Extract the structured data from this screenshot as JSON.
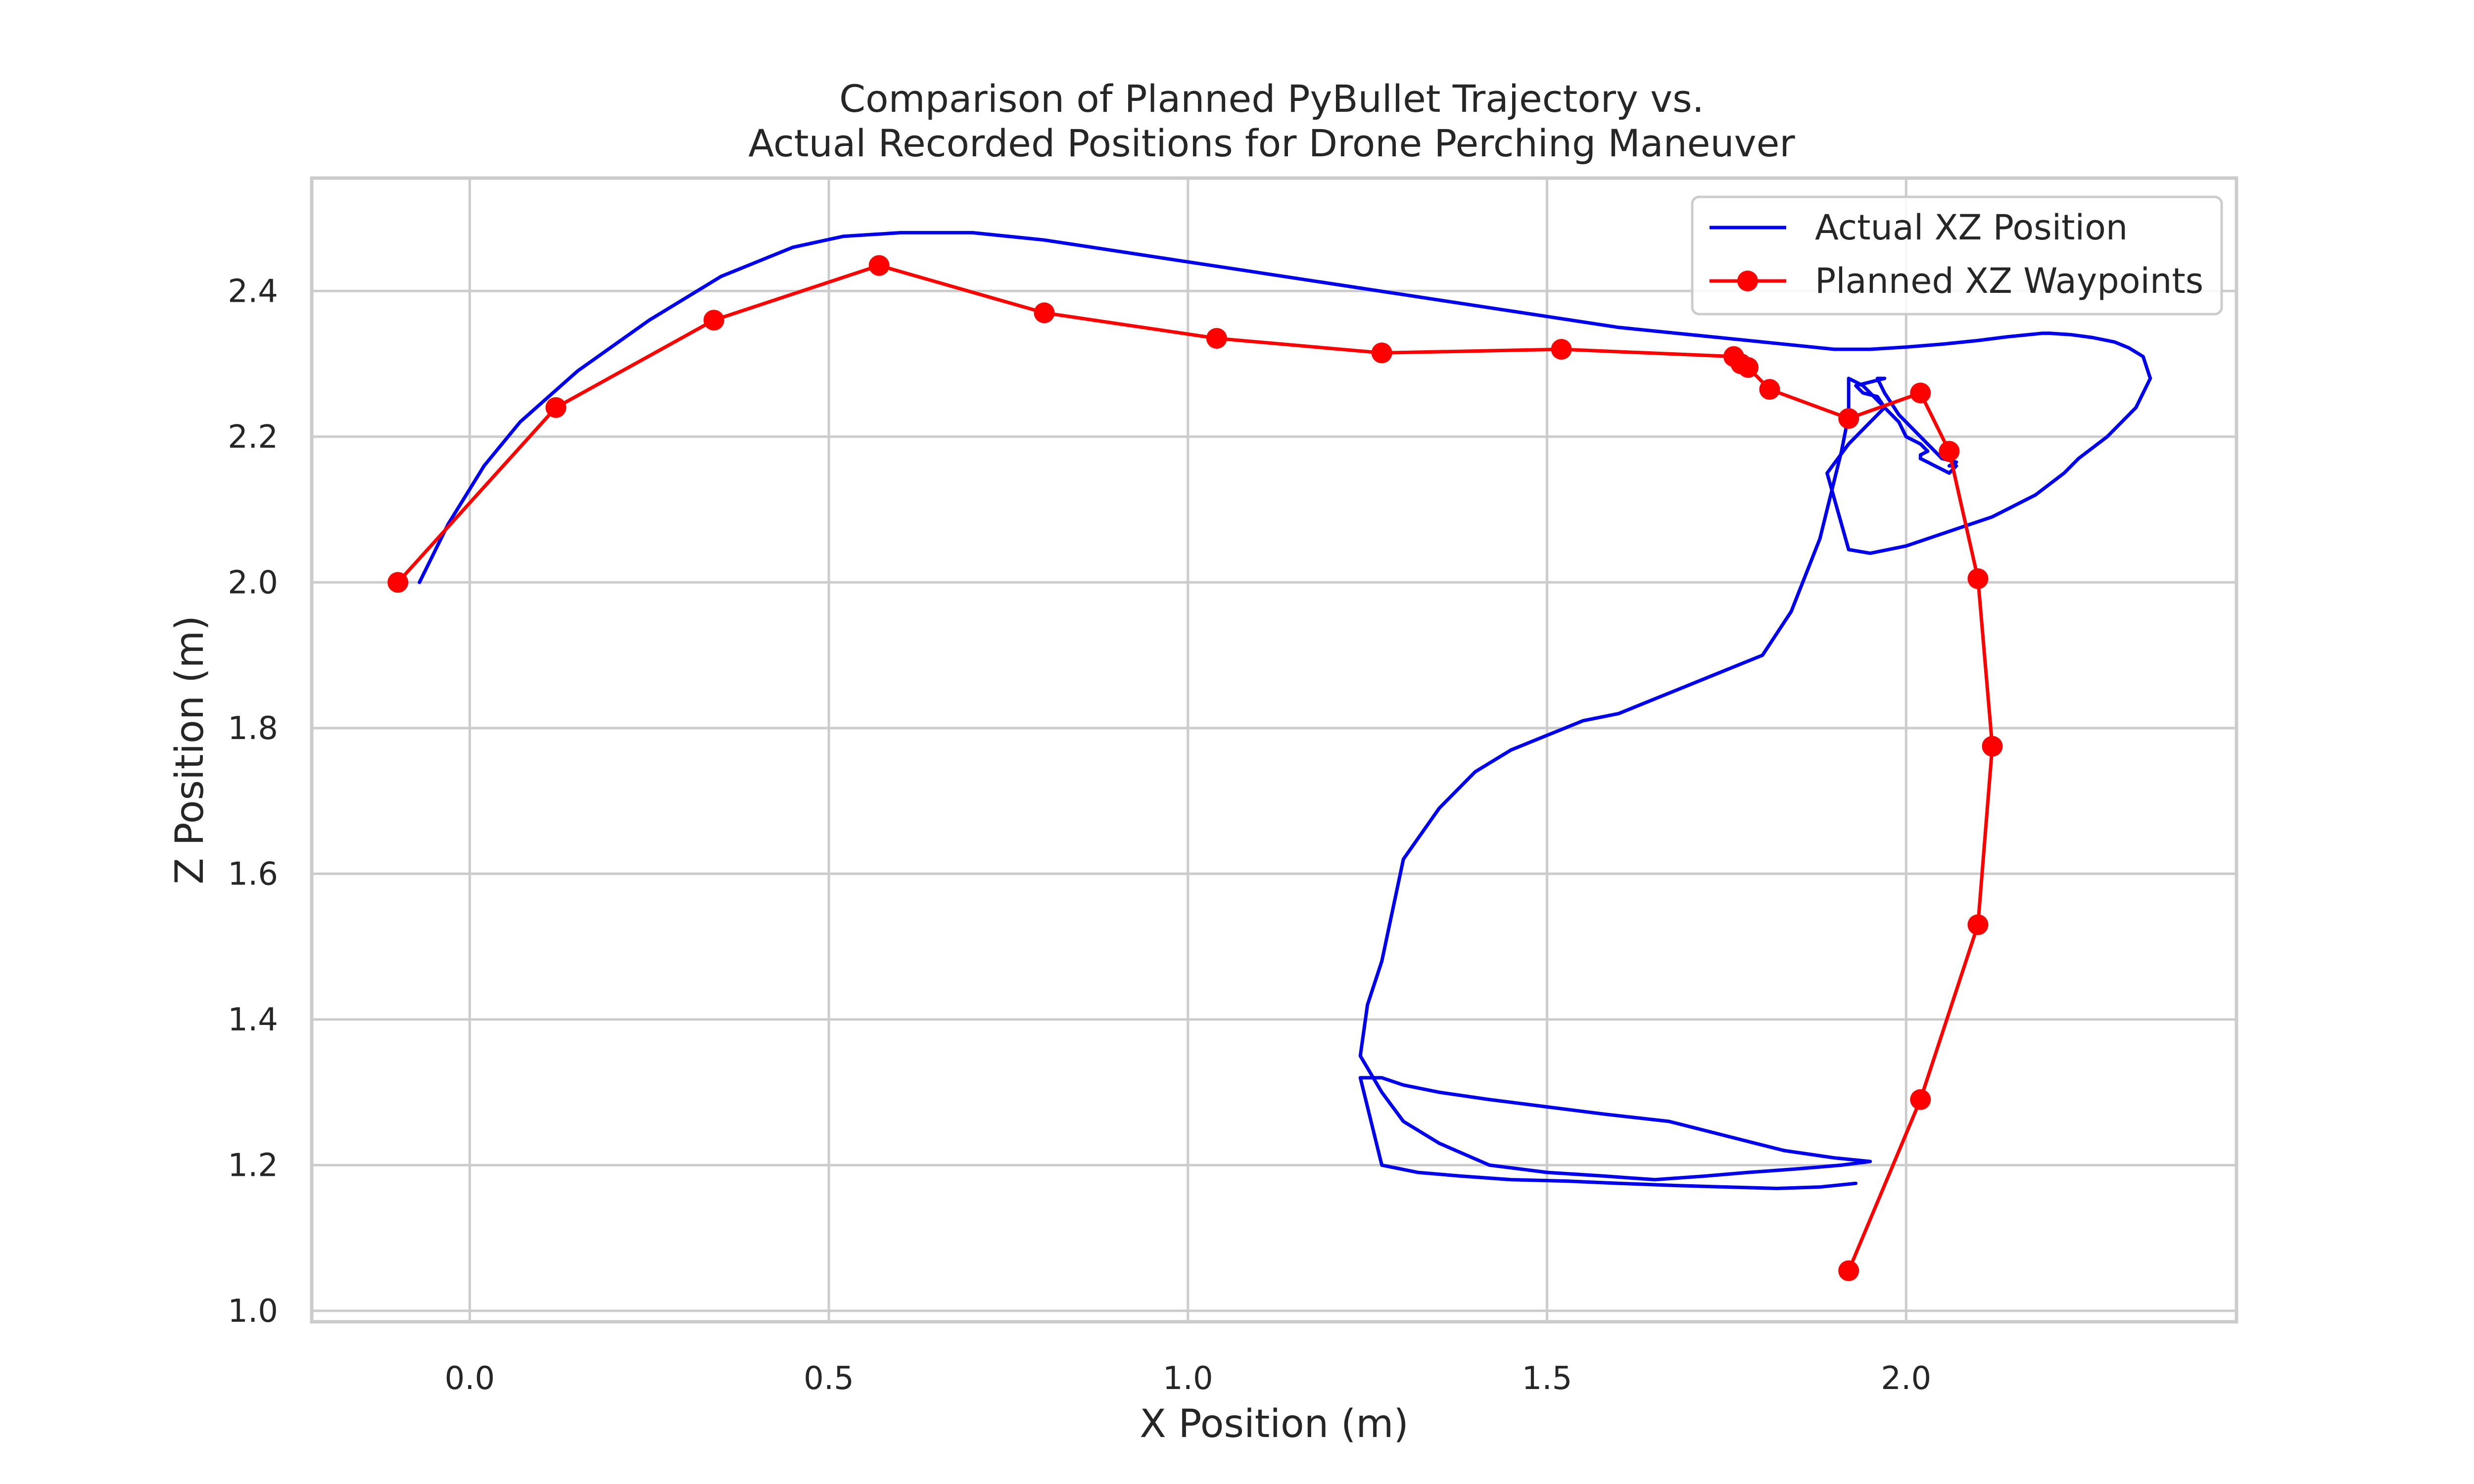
{
  "colors": {
    "actual": "#0000ee",
    "planned": "#ff0000",
    "grid": "#cccccc",
    "frame": "#cccccc",
    "background": "#ffffff"
  },
  "chart_data": {
    "type": "line",
    "title_lines": [
      "Comparison of Planned PyBullet Trajectory vs.",
      "Actual Recorded Positions for Drone Perching Maneuver"
    ],
    "xlabel": "X Position (m)",
    "ylabel": "Z Position (m)",
    "xlim": [
      -0.22,
      2.46
    ],
    "ylim": [
      0.985,
      2.555
    ],
    "xticks": [
      0.0,
      0.5,
      1.0,
      1.5,
      2.0
    ],
    "yticks": [
      1.0,
      1.2,
      1.4,
      1.6,
      1.8,
      2.0,
      2.2,
      2.4
    ],
    "xtick_labels": [
      "0.0",
      "0.5",
      "1.0",
      "1.5",
      "2.0"
    ],
    "ytick_labels": [
      "1.0",
      "1.2",
      "1.4",
      "1.6",
      "1.8",
      "2.0",
      "2.2",
      "2.4"
    ],
    "grid": true,
    "legend_position": "upper right",
    "series": [
      {
        "name": "Actual XZ Position",
        "style": "line",
        "x": [
          -0.07,
          -0.03,
          0.02,
          0.07,
          0.15,
          0.25,
          0.35,
          0.45,
          0.52,
          0.6,
          0.7,
          0.8,
          0.9,
          1.0,
          1.1,
          1.2,
          1.3,
          1.4,
          1.5,
          1.6,
          1.7,
          1.8,
          1.85,
          1.9,
          1.95,
          2.0,
          2.05,
          2.1,
          2.14,
          2.17,
          2.19,
          2.2,
          2.23,
          2.26,
          2.29,
          2.31,
          2.33,
          2.34,
          2.32,
          2.28,
          2.24,
          2.22,
          2.18,
          2.12,
          2.06,
          2.0,
          1.95,
          1.92,
          1.89,
          1.92,
          1.95,
          1.97,
          1.96,
          1.94,
          1.93,
          1.95,
          1.97,
          1.96,
          1.97,
          1.99,
          2.02,
          2.05,
          2.07,
          2.06,
          2.07,
          2.06,
          2.05,
          2.04,
          2.03,
          2.02,
          2.02,
          2.03,
          2.02,
          2.0,
          1.99,
          1.97,
          1.95,
          1.94,
          1.93,
          1.92,
          1.92,
          1.91,
          1.88,
          1.84,
          1.8,
          1.75,
          1.7,
          1.65,
          1.6,
          1.55,
          1.5,
          1.45,
          1.4,
          1.35,
          1.3,
          1.27,
          1.25,
          1.24,
          1.27,
          1.3,
          1.35,
          1.42,
          1.5,
          1.58,
          1.65,
          1.72,
          1.78,
          1.85,
          1.91,
          1.95,
          1.9,
          1.83,
          1.75,
          1.67,
          1.58,
          1.5,
          1.42,
          1.35,
          1.3,
          1.27,
          1.24,
          1.27,
          1.32,
          1.38,
          1.45,
          1.53,
          1.6,
          1.68,
          1.75,
          1.82,
          1.88,
          1.93
        ],
        "y": [
          2.0,
          2.08,
          2.16,
          2.22,
          2.29,
          2.36,
          2.42,
          2.46,
          2.475,
          2.48,
          2.48,
          2.47,
          2.455,
          2.44,
          2.425,
          2.41,
          2.395,
          2.38,
          2.365,
          2.35,
          2.34,
          2.33,
          2.325,
          2.32,
          2.32,
          2.323,
          2.327,
          2.332,
          2.337,
          2.34,
          2.342,
          2.342,
          2.34,
          2.336,
          2.33,
          2.322,
          2.31,
          2.28,
          2.24,
          2.2,
          2.17,
          2.15,
          2.12,
          2.09,
          2.07,
          2.05,
          2.04,
          2.045,
          2.15,
          2.19,
          2.22,
          2.24,
          2.255,
          2.26,
          2.27,
          2.275,
          2.28,
          2.28,
          2.26,
          2.23,
          2.2,
          2.17,
          2.165,
          2.16,
          2.16,
          2.15,
          2.155,
          2.16,
          2.165,
          2.17,
          2.175,
          2.18,
          2.19,
          2.2,
          2.22,
          2.24,
          2.26,
          2.27,
          2.275,
          2.28,
          2.23,
          2.18,
          2.06,
          1.96,
          1.9,
          1.88,
          1.86,
          1.84,
          1.82,
          1.81,
          1.79,
          1.77,
          1.74,
          1.69,
          1.62,
          1.48,
          1.42,
          1.35,
          1.3,
          1.26,
          1.23,
          1.2,
          1.19,
          1.185,
          1.18,
          1.185,
          1.19,
          1.195,
          1.2,
          1.205,
          1.21,
          1.22,
          1.24,
          1.26,
          1.27,
          1.28,
          1.29,
          1.3,
          1.31,
          1.32,
          1.32,
          1.2,
          1.19,
          1.185,
          1.18,
          1.178,
          1.175,
          1.172,
          1.17,
          1.168,
          1.17,
          1.175
        ]
      },
      {
        "name": "Planned XZ Waypoints",
        "style": "line-markers",
        "x": [
          -0.1,
          0.12,
          0.34,
          0.57,
          0.8,
          1.04,
          1.27,
          1.52,
          1.76,
          1.77,
          1.78,
          1.81,
          1.92,
          2.02,
          2.06,
          2.1,
          2.12,
          2.1,
          2.02,
          1.92
        ],
        "y": [
          2.0,
          2.24,
          2.36,
          2.435,
          2.37,
          2.335,
          2.315,
          2.32,
          2.31,
          2.3,
          2.295,
          2.265,
          2.225,
          2.26,
          2.18,
          2.005,
          1.775,
          1.53,
          1.29,
          1.055
        ]
      }
    ]
  }
}
